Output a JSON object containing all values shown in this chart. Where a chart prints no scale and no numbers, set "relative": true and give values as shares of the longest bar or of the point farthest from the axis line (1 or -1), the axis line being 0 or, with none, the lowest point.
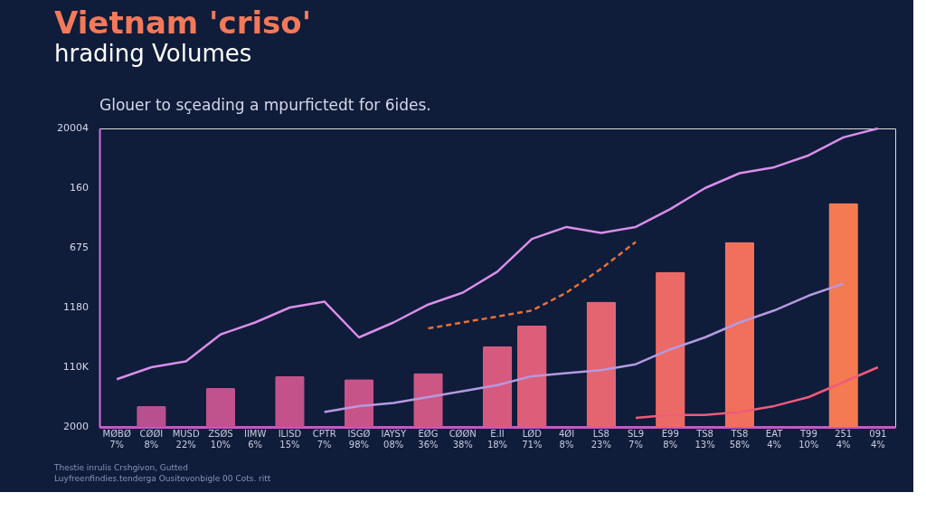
{
  "chart_data": {
    "type": "bar",
    "title": "Vietnam 'criso'",
    "subtitle": "hrading Volumes",
    "relative": true,
    "grid": false,
    "categories": [
      "MØBØ\n7%",
      "CØØI\n8%",
      "MUSD\n22%",
      "ZSØS\n10%",
      "IIMW\n6%",
      "ILISD\n15%",
      "CPTR\n7%",
      "ISGØ\n98%",
      "IAYSY\n08%",
      "EØG\n36%",
      "CØØN\n38%",
      "E.II\n18%",
      "LØD\n71%",
      "4ØI\n8%",
      "LS8\n23%",
      "SL9\n7%",
      "E99\n8%",
      "TS8\n13%",
      "TS8\n58%",
      "EAT\n4%",
      "T99\n10%",
      "251\n4%",
      "091\n4%"
    ],
    "series": [
      {
        "colors": [
          null,
          "#b8508f",
          null,
          "#c0528e",
          null,
          "#c4528a",
          null,
          "#c75488",
          null,
          "#cc5684",
          null,
          "#d65a7e",
          "#dc5e78",
          null,
          "#e46470",
          null,
          "#ec6a66",
          null,
          "#f0705c",
          null,
          null,
          "#f47a52",
          null
        ],
        "values": [
          null,
          0.07,
          null,
          0.13,
          null,
          0.17,
          null,
          0.16,
          null,
          0.18,
          null,
          0.27,
          0.34,
          null,
          0.42,
          null,
          0.52,
          null,
          0.62,
          null,
          null,
          0.75,
          null
        ]
      },
      {
        "type": "line",
        "color": "#d98ee8",
        "line_style": "solid",
        "values": [
          0.16,
          0.2,
          0.22,
          0.31,
          0.35,
          0.4,
          0.42,
          0.3,
          0.35,
          0.41,
          0.45,
          0.52,
          0.63,
          0.67,
          0.65,
          0.67,
          0.73,
          0.8,
          0.85,
          0.87,
          0.91,
          0.97,
          1.0
        ]
      },
      {
        "type": "line",
        "color": "#e8703a",
        "line_style": "dashed",
        "values": [
          null,
          null,
          null,
          null,
          null,
          null,
          null,
          null,
          null,
          0.33,
          0.35,
          0.37,
          0.39,
          0.45,
          0.53,
          0.62,
          null,
          null,
          null,
          null,
          null,
          null,
          null
        ]
      },
      {
        "type": "line",
        "color": "#b49ae0",
        "line_style": "solid",
        "values": [
          null,
          null,
          null,
          null,
          null,
          null,
          0.05,
          0.07,
          0.08,
          0.1,
          0.12,
          0.14,
          0.17,
          0.18,
          0.19,
          0.21,
          0.26,
          0.3,
          0.35,
          0.39,
          0.44,
          0.48,
          null
        ]
      },
      {
        "type": "line",
        "color": "#ef5b7a",
        "line_style": "solid",
        "values": [
          null,
          null,
          null,
          null,
          null,
          null,
          null,
          null,
          null,
          null,
          null,
          null,
          null,
          null,
          null,
          0.03,
          0.04,
          0.04,
          0.05,
          0.07,
          0.1,
          0.15,
          0.2
        ]
      }
    ],
    "annotations": [
      "Glouer to sҫeading a mpurfictedt for 6ides.",
      "20004",
      "160",
      "675",
      "1180",
      "110K",
      "2000",
      "Thestie inrulis Crshgivon, Gutted",
      "Luyfreenfindies.tenderga Ousitevonbigle 00 Cots. ritt"
    ]
  }
}
